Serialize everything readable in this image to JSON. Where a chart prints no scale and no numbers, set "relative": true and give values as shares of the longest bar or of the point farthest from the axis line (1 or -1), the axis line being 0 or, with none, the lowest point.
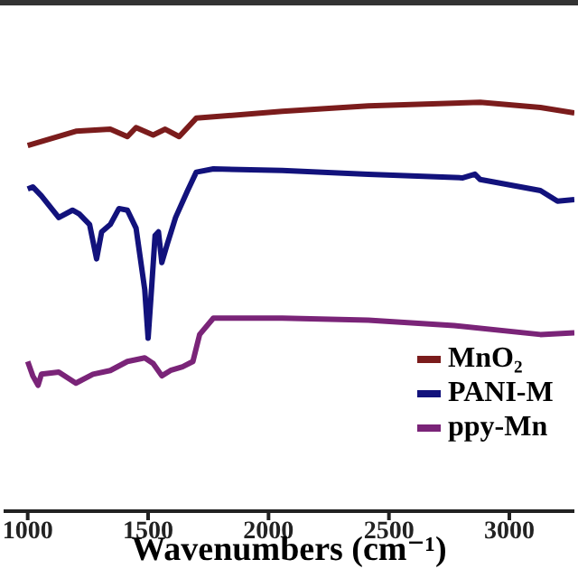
{
  "chart_data": {
    "type": "line",
    "relative": true,
    "xlabel": "Wavenumbers (cm⁻¹)",
    "xlim": [
      900,
      3270
    ],
    "xticks": [
      1000,
      1500,
      2000,
      2500,
      3000
    ],
    "legend": "bottom right",
    "marker": "none",
    "line_style": "solid",
    "series": [
      {
        "name": "MnO₂",
        "color": "#7b1c1c",
        "x": [
          1000,
          1200,
          1343,
          1414,
          1450,
          1521,
          1571,
          1629,
          1700,
          2057,
          2414,
          2879,
          3129,
          3270
        ],
        "values": [
          0.894,
          0.929,
          0.934,
          0.916,
          0.938,
          0.92,
          0.934,
          0.916,
          0.961,
          0.978,
          0.991,
          1,
          0.987,
          0.974
        ]
      },
      {
        "name": "PANI-M",
        "color": "#12127c",
        "x": [
          1000,
          1021,
          1057,
          1129,
          1186,
          1214,
          1257,
          1286,
          1307,
          1343,
          1379,
          1414,
          1450,
          1486,
          1500,
          1514,
          1529,
          1543,
          1557,
          1579,
          1614,
          1664,
          1700,
          1771,
          2057,
          2414,
          2807,
          2857,
          2879,
          3129,
          3200,
          3270
        ],
        "values": [
          0.788,
          0.793,
          0.771,
          0.718,
          0.736,
          0.727,
          0.701,
          0.617,
          0.683,
          0.701,
          0.74,
          0.736,
          0.692,
          0.542,
          0.423,
          0.542,
          0.674,
          0.683,
          0.608,
          0.652,
          0.718,
          0.784,
          0.829,
          0.837,
          0.833,
          0.824,
          0.815,
          0.824,
          0.811,
          0.784,
          0.758,
          0.762
        ]
      },
      {
        "name": "ppy-Mn",
        "color": "#7a2478",
        "x": [
          1000,
          1021,
          1043,
          1057,
          1129,
          1200,
          1271,
          1343,
          1414,
          1486,
          1521,
          1557,
          1593,
          1643,
          1686,
          1714,
          1771,
          2057,
          2414,
          2771,
          3129,
          3270
        ],
        "values": [
          0.366,
          0.331,
          0.308,
          0.335,
          0.34,
          0.313,
          0.335,
          0.344,
          0.366,
          0.375,
          0.361,
          0.331,
          0.344,
          0.353,
          0.366,
          0.432,
          0.472,
          0.472,
          0.467,
          0.454,
          0.432,
          0.436
        ]
      }
    ]
  }
}
